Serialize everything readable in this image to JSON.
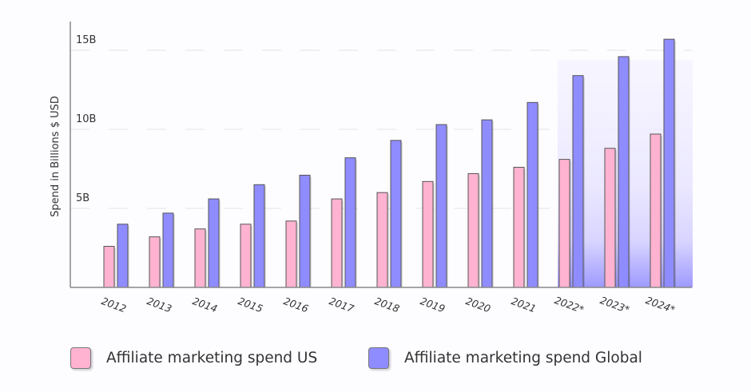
{
  "chart_data": {
    "type": "bar",
    "title": "",
    "xlabel": "",
    "ylabel": "Spend in Billions $ USD",
    "ylim": [
      0,
      16.8
    ],
    "yticks": [
      {
        "value": 5,
        "label": "5B"
      },
      {
        "value": 10,
        "label": "10B"
      },
      {
        "value": 15,
        "label": "15B"
      }
    ],
    "grid": true,
    "categories": [
      "2012",
      "2013",
      "2014",
      "2015",
      "2016",
      "2017",
      "2018",
      "2019",
      "2020",
      "2021",
      "2022*",
      "2023*",
      "2024*"
    ],
    "series": [
      {
        "name": "Affiliate marketing spend US",
        "color": "#ffb3d0",
        "values": [
          2.6,
          3.2,
          3.7,
          4.0,
          4.2,
          5.6,
          6.0,
          6.7,
          7.2,
          7.6,
          8.1,
          8.8,
          9.7
        ]
      },
      {
        "name": "Affiliate marketing spend Global",
        "color": "#8f8cff",
        "values": [
          4.0,
          4.7,
          5.6,
          6.5,
          7.1,
          8.2,
          9.3,
          10.3,
          10.6,
          11.7,
          13.4,
          14.6,
          15.7
        ]
      }
    ],
    "highlighted_categories": [
      "2022*",
      "2023*",
      "2024*"
    ],
    "legend_position": "bottom-left"
  }
}
